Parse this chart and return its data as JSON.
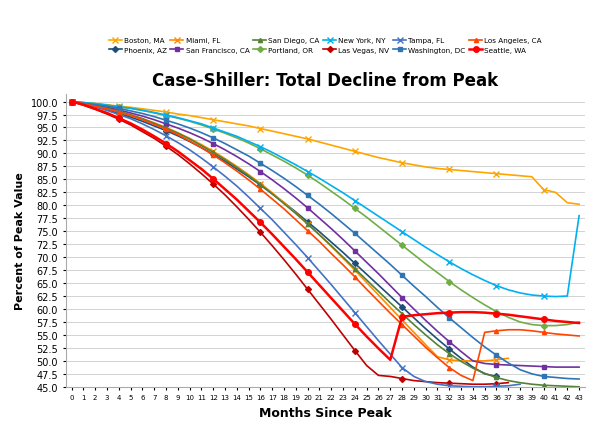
{
  "title": "Case-Shiller: Total Decline from Peak",
  "xlabel": "Months Since Peak",
  "ylabel": "Percent of Peak Value",
  "ylim": [
    45.0,
    101.5
  ],
  "xlim": [
    -0.5,
    43.5
  ],
  "yticks": [
    45.0,
    47.5,
    50.0,
    52.5,
    55.0,
    57.5,
    60.0,
    62.5,
    65.0,
    67.5,
    70.0,
    72.5,
    75.0,
    77.5,
    80.0,
    82.5,
    85.0,
    87.5,
    90.0,
    92.5,
    95.0,
    97.5,
    100.0
  ],
  "series": [
    {
      "name": "Boston, MA",
      "color": "#FFA500",
      "marker": "x",
      "markersize": 4,
      "linewidth": 1.2,
      "data_x": [
        0,
        1,
        2,
        3,
        4,
        5,
        6,
        7,
        8,
        9,
        10,
        11,
        12,
        13,
        14,
        15,
        16,
        17,
        18,
        19,
        20,
        21,
        22,
        23,
        24,
        25,
        26,
        27,
        28,
        29,
        30,
        31,
        32,
        33,
        34,
        35,
        36,
        37,
        38,
        39,
        40,
        41,
        42,
        43
      ],
      "data_y": [
        100,
        99.8,
        99.6,
        99.4,
        99.1,
        98.9,
        98.6,
        98.3,
        98.0,
        97.6,
        97.3,
        96.9,
        96.5,
        96.1,
        95.7,
        95.3,
        94.8,
        94.3,
        93.8,
        93.3,
        92.8,
        92.2,
        91.6,
        91.0,
        90.4,
        89.8,
        89.2,
        88.7,
        88.2,
        87.8,
        87.4,
        87.1,
        86.9,
        86.7,
        86.5,
        86.3,
        86.1,
        85.9,
        85.7,
        85.5,
        83.0,
        82.5,
        80.5,
        80.2
      ]
    },
    {
      "name": "Phoenix, AZ",
      "color": "#1F4E79",
      "marker": "D",
      "markersize": 3,
      "linewidth": 1.2,
      "data_x": [
        0,
        1,
        2,
        3,
        4,
        5,
        6,
        7,
        8,
        9,
        10,
        11,
        12,
        13,
        14,
        15,
        16,
        17,
        18,
        19,
        20,
        21,
        22,
        23,
        24,
        25,
        26,
        27,
        28,
        29,
        30,
        31,
        32,
        33,
        34,
        35,
        36
      ],
      "data_y": [
        100,
        99.5,
        99.0,
        98.4,
        97.7,
        97.0,
        96.2,
        95.3,
        94.4,
        93.4,
        92.3,
        91.1,
        89.8,
        88.5,
        87.0,
        85.5,
        83.9,
        82.2,
        80.5,
        78.7,
        76.8,
        74.9,
        72.9,
        70.9,
        68.8,
        66.7,
        64.6,
        62.5,
        60.4,
        58.3,
        56.2,
        54.2,
        52.3,
        50.5,
        48.8,
        47.5,
        47.0
      ]
    },
    {
      "name": "Miami, FL",
      "color": "#FF8C00",
      "marker": "x",
      "markersize": 4,
      "linewidth": 1.2,
      "data_x": [
        0,
        1,
        2,
        3,
        4,
        5,
        6,
        7,
        8,
        9,
        10,
        11,
        12,
        13,
        14,
        15,
        16,
        17,
        18,
        19,
        20,
        21,
        22,
        23,
        24,
        25,
        26,
        27,
        28,
        29,
        30,
        31,
        32,
        33,
        34,
        35,
        36,
        37
      ],
      "data_y": [
        100,
        99.6,
        99.2,
        98.7,
        98.1,
        97.5,
        96.7,
        95.9,
        95.0,
        94.0,
        92.9,
        91.7,
        90.4,
        89.0,
        87.5,
        85.9,
        84.2,
        82.4,
        80.5,
        78.5,
        76.4,
        74.3,
        72.1,
        69.8,
        67.5,
        65.1,
        62.7,
        60.3,
        57.9,
        55.5,
        53.1,
        50.8,
        50.2,
        50.0,
        50.0,
        50.0,
        50.2,
        50.5
      ]
    },
    {
      "name": "San Francisco, CA",
      "color": "#7030A0",
      "marker": "s",
      "markersize": 3,
      "linewidth": 1.2,
      "data_x": [
        0,
        1,
        2,
        3,
        4,
        5,
        6,
        7,
        8,
        9,
        10,
        11,
        12,
        13,
        14,
        15,
        16,
        17,
        18,
        19,
        20,
        21,
        22,
        23,
        24,
        25,
        26,
        27,
        28,
        29,
        30,
        31,
        32,
        33,
        34,
        35,
        36,
        37,
        38,
        39,
        40,
        41,
        42,
        43
      ],
      "data_y": [
        100,
        99.7,
        99.3,
        98.9,
        98.4,
        97.8,
        97.2,
        96.5,
        95.7,
        94.9,
        94.0,
        93.0,
        91.9,
        90.7,
        89.4,
        88.0,
        86.5,
        84.9,
        83.2,
        81.4,
        79.5,
        77.5,
        75.5,
        73.4,
        71.2,
        69.0,
        66.8,
        64.5,
        62.2,
        60.0,
        57.8,
        55.7,
        53.7,
        51.8,
        50.0,
        49.5,
        49.3,
        49.2,
        49.1,
        49.0,
        48.9,
        48.8,
        48.8,
        48.8
      ]
    },
    {
      "name": "San Diego, CA",
      "color": "#548235",
      "marker": "^",
      "markersize": 3,
      "linewidth": 1.2,
      "data_x": [
        0,
        1,
        2,
        3,
        4,
        5,
        6,
        7,
        8,
        9,
        10,
        11,
        12,
        13,
        14,
        15,
        16,
        17,
        18,
        19,
        20,
        21,
        22,
        23,
        24,
        25,
        26,
        27,
        28,
        29,
        30,
        31,
        32,
        33,
        34,
        35,
        36,
        37,
        38,
        39,
        40,
        41,
        42,
        43
      ],
      "data_y": [
        100,
        99.6,
        99.2,
        98.7,
        98.1,
        97.4,
        96.7,
        95.8,
        94.9,
        93.9,
        92.8,
        91.5,
        90.2,
        88.8,
        87.3,
        85.7,
        84.0,
        82.2,
        80.3,
        78.4,
        76.4,
        74.3,
        72.2,
        70.0,
        67.8,
        65.6,
        63.4,
        61.2,
        59.1,
        57.0,
        55.0,
        53.1,
        51.4,
        49.9,
        48.6,
        47.6,
        46.8,
        46.2,
        45.8,
        45.5,
        45.3,
        45.2,
        45.1,
        45.0
      ]
    },
    {
      "name": "Portland, OR",
      "color": "#70AD47",
      "marker": "D",
      "markersize": 3,
      "linewidth": 1.2,
      "data_x": [
        0,
        1,
        2,
        3,
        4,
        5,
        6,
        7,
        8,
        9,
        10,
        11,
        12,
        13,
        14,
        15,
        16,
        17,
        18,
        19,
        20,
        21,
        22,
        23,
        24,
        25,
        26,
        27,
        28,
        29,
        30,
        31,
        32,
        33,
        34,
        35,
        36,
        37,
        38,
        39,
        40,
        41,
        42,
        43
      ],
      "data_y": [
        100,
        99.8,
        99.6,
        99.3,
        99.0,
        98.7,
        98.3,
        97.8,
        97.3,
        96.8,
        96.2,
        95.5,
        94.7,
        93.9,
        93.0,
        92.0,
        90.9,
        89.7,
        88.5,
        87.2,
        85.8,
        84.3,
        82.7,
        81.1,
        79.4,
        77.7,
        75.9,
        74.1,
        72.3,
        70.5,
        68.7,
        67.0,
        65.3,
        63.7,
        62.2,
        60.8,
        59.5,
        58.4,
        57.5,
        57.0,
        56.8,
        56.8,
        57.0,
        57.5
      ]
    },
    {
      "name": "New York, NY",
      "color": "#00B0F0",
      "marker": "x",
      "markersize": 4,
      "linewidth": 1.2,
      "data_x": [
        0,
        1,
        2,
        3,
        4,
        5,
        6,
        7,
        8,
        9,
        10,
        11,
        12,
        13,
        14,
        15,
        16,
        17,
        18,
        19,
        20,
        21,
        22,
        23,
        24,
        25,
        26,
        27,
        28,
        29,
        30,
        31,
        32,
        33,
        34,
        35,
        36,
        37,
        38,
        39,
        40,
        41,
        42,
        43
      ],
      "data_y": [
        100,
        99.8,
        99.6,
        99.3,
        99.0,
        98.7,
        98.3,
        97.9,
        97.4,
        96.9,
        96.3,
        95.7,
        94.9,
        94.1,
        93.3,
        92.3,
        91.3,
        90.2,
        89.0,
        87.8,
        86.5,
        85.2,
        83.8,
        82.4,
        80.9,
        79.4,
        77.9,
        76.4,
        74.9,
        73.4,
        71.9,
        70.5,
        69.1,
        67.8,
        66.6,
        65.5,
        64.5,
        63.7,
        63.1,
        62.7,
        62.5,
        62.4,
        62.5,
        78.0
      ]
    },
    {
      "name": "Las Vegas, NV",
      "color": "#C00000",
      "marker": "D",
      "markersize": 3,
      "linewidth": 1.2,
      "data_x": [
        0,
        1,
        2,
        3,
        4,
        5,
        6,
        7,
        8,
        9,
        10,
        11,
        12,
        13,
        14,
        15,
        16,
        17,
        18,
        19,
        20,
        21,
        22,
        23,
        24,
        25,
        26,
        27,
        28,
        29,
        30,
        31,
        32,
        33,
        34,
        35,
        36,
        37
      ],
      "data_y": [
        100,
        99.3,
        98.5,
        97.6,
        96.6,
        95.5,
        94.2,
        92.9,
        91.4,
        89.8,
        88.0,
        86.1,
        84.1,
        82.0,
        79.7,
        77.3,
        74.8,
        72.2,
        69.5,
        66.7,
        63.8,
        60.9,
        58.0,
        55.0,
        52.0,
        49.1,
        47.2,
        47.0,
        46.6,
        46.2,
        46.0,
        45.8,
        45.7,
        45.6,
        45.5,
        45.5,
        45.6,
        45.8
      ]
    },
    {
      "name": "Tampa, FL",
      "color": "#4472C4",
      "marker": "x",
      "markersize": 4,
      "linewidth": 1.2,
      "data_x": [
        0,
        1,
        2,
        3,
        4,
        5,
        6,
        7,
        8,
        9,
        10,
        11,
        12,
        13,
        14,
        15,
        16,
        17,
        18,
        19,
        20,
        21,
        22,
        23,
        24,
        25,
        26,
        27,
        28,
        29,
        30,
        31,
        32,
        33,
        34,
        35,
        36,
        37,
        38
      ],
      "data_y": [
        100,
        99.5,
        99.0,
        98.3,
        97.5,
        96.7,
        95.7,
        94.6,
        93.4,
        92.1,
        90.7,
        89.1,
        87.4,
        85.6,
        83.7,
        81.6,
        79.4,
        77.2,
        74.8,
        72.4,
        69.9,
        67.3,
        64.7,
        62.0,
        59.3,
        56.6,
        53.9,
        51.3,
        48.7,
        47.0,
        46.0,
        45.5,
        45.2,
        45.1,
        45.0,
        45.0,
        45.1,
        45.2,
        45.5
      ]
    },
    {
      "name": "Washington, DC",
      "color": "#2E75B6",
      "marker": "s",
      "markersize": 3,
      "linewidth": 1.2,
      "data_x": [
        0,
        1,
        2,
        3,
        4,
        5,
        6,
        7,
        8,
        9,
        10,
        11,
        12,
        13,
        14,
        15,
        16,
        17,
        18,
        19,
        20,
        21,
        22,
        23,
        24,
        25,
        26,
        27,
        28,
        29,
        30,
        31,
        32,
        33,
        34,
        35,
        36,
        37,
        38,
        39,
        40,
        41,
        42,
        43
      ],
      "data_y": [
        100,
        99.7,
        99.4,
        99.1,
        98.7,
        98.2,
        97.7,
        97.1,
        96.4,
        95.7,
        94.9,
        94.0,
        93.0,
        91.9,
        90.7,
        89.5,
        88.1,
        86.7,
        85.2,
        83.6,
        81.9,
        80.2,
        78.4,
        76.5,
        74.6,
        72.6,
        70.6,
        68.6,
        66.5,
        64.4,
        62.4,
        60.3,
        58.3,
        56.4,
        54.5,
        52.7,
        51.1,
        49.6,
        48.3,
        47.5,
        47.0,
        46.8,
        46.6,
        46.5
      ]
    },
    {
      "name": "Los Angeles, CA",
      "color": "#FF4500",
      "marker": "^",
      "markersize": 3,
      "linewidth": 1.2,
      "data_x": [
        0,
        1,
        2,
        3,
        4,
        5,
        6,
        7,
        8,
        9,
        10,
        11,
        12,
        13,
        14,
        15,
        16,
        17,
        18,
        19,
        20,
        21,
        22,
        23,
        24,
        25,
        26,
        27,
        28,
        29,
        30,
        31,
        32,
        33,
        34,
        35,
        36,
        37,
        38,
        39,
        40,
        41,
        42,
        43
      ],
      "data_y": [
        100,
        99.6,
        99.1,
        98.6,
        98.0,
        97.3,
        96.5,
        95.6,
        94.7,
        93.6,
        92.4,
        91.1,
        89.7,
        88.2,
        86.6,
        84.9,
        83.1,
        81.2,
        79.3,
        77.2,
        75.1,
        73.0,
        70.7,
        68.5,
        66.2,
        63.8,
        61.5,
        59.2,
        57.0,
        54.8,
        52.6,
        50.6,
        48.7,
        47.2,
        46.2,
        55.5,
        55.8,
        56.0,
        56.0,
        55.8,
        55.5,
        55.2,
        55.0,
        54.8
      ]
    },
    {
      "name": "Seattle, WA",
      "color": "#FF0000",
      "marker": "o",
      "markersize": 4,
      "linewidth": 1.8,
      "data_x": [
        0,
        1,
        2,
        3,
        4,
        5,
        6,
        7,
        8,
        9,
        10,
        11,
        12,
        13,
        14,
        15,
        16,
        17,
        18,
        19,
        20,
        21,
        22,
        23,
        24,
        25,
        26,
        27,
        28,
        29,
        30,
        31,
        32,
        33,
        34,
        35,
        36,
        37,
        38,
        39,
        40,
        41,
        42,
        43
      ],
      "data_y": [
        100,
        99.4,
        98.6,
        97.8,
        96.8,
        95.8,
        94.6,
        93.3,
        91.9,
        90.4,
        88.7,
        87.0,
        85.1,
        83.1,
        81.1,
        78.9,
        76.7,
        74.4,
        72.0,
        69.6,
        67.1,
        64.6,
        62.1,
        59.6,
        57.1,
        54.7,
        52.4,
        50.2,
        58.5,
        58.8,
        59.0,
        59.2,
        59.3,
        59.4,
        59.4,
        59.3,
        59.1,
        58.9,
        58.6,
        58.3,
        58.0,
        57.7,
        57.5,
        57.3
      ]
    }
  ],
  "legend_order": [
    "Boston, MA",
    "Phoenix, AZ",
    "Miami, FL",
    "San Francisco, CA",
    "San Diego, CA",
    "Portland, OR",
    "New York, NY",
    "Las Vegas, NV",
    "Tampa, FL",
    "Washington, DC",
    "Los Angeles, CA",
    "Seattle, WA"
  ]
}
